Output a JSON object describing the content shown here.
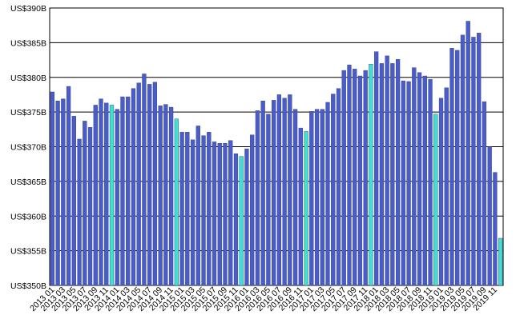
{
  "chart_data": {
    "type": "bar",
    "categories": [
      "2013 01",
      null,
      "2013 03",
      null,
      "2013 05",
      null,
      "2013 07",
      null,
      "2013 09",
      null,
      "2013 11",
      null,
      "2014 01",
      null,
      "2014 03",
      null,
      "2014 05",
      null,
      "2014 07",
      null,
      "2014 09",
      null,
      "2014 11",
      null,
      "2015 01",
      null,
      "2015 03",
      null,
      "2015 05",
      null,
      "2015 07",
      null,
      "2015 09",
      null,
      "2015 11",
      null,
      "2016 01",
      null,
      "2016 03",
      null,
      "2016 05",
      null,
      "2016 07",
      null,
      "2016 09",
      null,
      "2016 11",
      null,
      "2017 01",
      null,
      "2017 03",
      null,
      "2017 05",
      null,
      "2017 07",
      null,
      "2017 09",
      null,
      "2017 11",
      null,
      "2018 01",
      null,
      "2018 03",
      null,
      "2018 05",
      null,
      "2018 07",
      null,
      "2018 09",
      null,
      "2018 11",
      null,
      "2019 01",
      null,
      "2019 03",
      null,
      "2019 05",
      null,
      "2019 07",
      null,
      "2019 09",
      null,
      "2019 11",
      null
    ],
    "values": [
      377.9,
      376.6,
      376.9,
      378.7,
      374.4,
      371.1,
      373.7,
      372.8,
      376.0,
      376.9,
      376.3,
      376.0,
      375.4,
      377.2,
      377.2,
      378.4,
      379.2,
      380.5,
      379.0,
      379.3,
      375.9,
      376.1,
      375.7,
      374.0,
      372.1,
      372.1,
      371.0,
      373.0,
      371.6,
      372.1,
      370.7,
      370.5,
      370.5,
      370.9,
      369.0,
      368.6,
      369.7,
      371.7,
      375.2,
      376.6,
      374.7,
      376.7,
      377.5,
      377.0,
      377.5,
      375.4,
      372.7,
      372.2,
      375.1,
      375.4,
      375.4,
      376.4,
      377.6,
      378.4,
      381.0,
      381.8,
      381.2,
      380.2,
      381.0,
      381.9,
      383.7,
      382.0,
      383.1,
      382.0,
      382.6,
      379.5,
      379.4,
      381.4,
      380.7,
      380.2,
      379.7,
      374.7,
      377.0,
      378.5,
      384.2,
      383.9,
      386.1,
      388.1,
      385.8,
      386.4,
      376.5,
      370.0,
      366.3,
      356.8
    ],
    "colors": [
      "#4a5cc6",
      "#4a5cc6",
      "#4a5cc6",
      "#4a5cc6",
      "#4a5cc6",
      "#4a5cc6",
      "#4a5cc6",
      "#4a5cc6",
      "#4a5cc6",
      "#4a5cc6",
      "#4a5cc6",
      "#3fe0d0",
      "#4a5cc6",
      "#4a5cc6",
      "#4a5cc6",
      "#4a5cc6",
      "#4a5cc6",
      "#4a5cc6",
      "#4a5cc6",
      "#4a5cc6",
      "#4a5cc6",
      "#4a5cc6",
      "#4a5cc6",
      "#3fe0d0",
      "#4a5cc6",
      "#4a5cc6",
      "#4a5cc6",
      "#4a5cc6",
      "#4a5cc6",
      "#4a5cc6",
      "#4a5cc6",
      "#4a5cc6",
      "#4a5cc6",
      "#4a5cc6",
      "#4a5cc6",
      "#3fe0d0",
      "#4a5cc6",
      "#4a5cc6",
      "#4a5cc6",
      "#4a5cc6",
      "#4a5cc6",
      "#4a5cc6",
      "#4a5cc6",
      "#4a5cc6",
      "#4a5cc6",
      "#4a5cc6",
      "#4a5cc6",
      "#3fe0d0",
      "#4a5cc6",
      "#4a5cc6",
      "#4a5cc6",
      "#4a5cc6",
      "#4a5cc6",
      "#4a5cc6",
      "#4a5cc6",
      "#4a5cc6",
      "#4a5cc6",
      "#4a5cc6",
      "#4a5cc6",
      "#3fe0d0",
      "#4a5cc6",
      "#4a5cc6",
      "#4a5cc6",
      "#4a5cc6",
      "#4a5cc6",
      "#4a5cc6",
      "#4a5cc6",
      "#4a5cc6",
      "#4a5cc6",
      "#4a5cc6",
      "#4a5cc6",
      "#3fe0d0",
      "#4a5cc6",
      "#4a5cc6",
      "#4a5cc6",
      "#4a5cc6",
      "#4a5cc6",
      "#4a5cc6",
      "#4a5cc6",
      "#4a5cc6",
      "#4a5cc6",
      "#4a5cc6",
      "#4a5cc6",
      "#3fe0d0"
    ],
    "ylim": [
      350,
      390
    ],
    "yticks": [
      {
        "value": 350,
        "label": "US$350B"
      },
      {
        "value": 355,
        "label": "US$355B"
      },
      {
        "value": 360,
        "label": "US$360B"
      },
      {
        "value": 365,
        "label": "US$365B"
      },
      {
        "value": 370,
        "label": "US$370B"
      },
      {
        "value": 375,
        "label": "US$375B"
      },
      {
        "value": 380,
        "label": "US$380B"
      },
      {
        "value": 385,
        "label": "US$385B"
      },
      {
        "value": 390,
        "label": "US$390B"
      }
    ],
    "grid": true
  }
}
